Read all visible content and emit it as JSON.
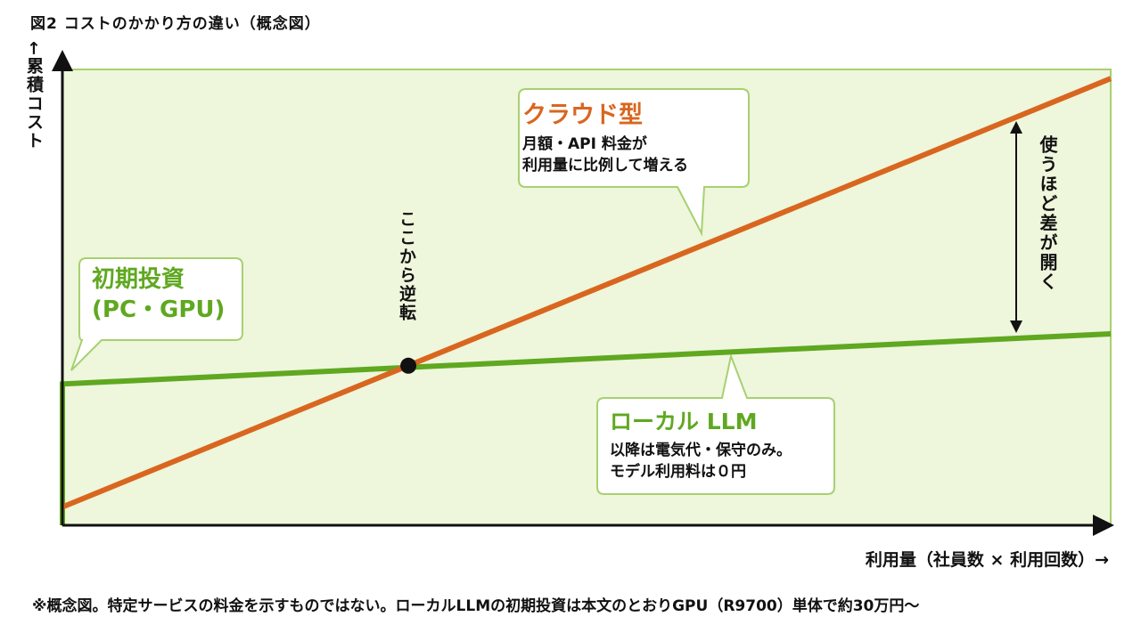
{
  "figure_title": "図2 コストのかかり方の違い（概念図）",
  "y_axis_label": "←累積コスト",
  "x_axis_label": "利用量（社員数 × 利用回数）→",
  "footnote": "※概念図。特定サービスの料金を示すものではない。ローカルLLMの初期投資は本文のとおりGPU（R9700）単体で約30万円〜",
  "annotations": {
    "cloud_title": "クラウド型",
    "cloud_line1": "月額・API 料金が",
    "cloud_line2": "利用量に比例して増える",
    "initial_line1": "初期投資",
    "initial_line2": "(PC・GPU)",
    "local_title": "ローカル LLM",
    "local_line1": "以降は電気代・保守のみ。",
    "local_line2": "モデル利用料は０円",
    "crossover": "ここから逆転",
    "gap": "使うほど差が開く"
  },
  "colors": {
    "cloud": "#d9661f",
    "local": "#5fa820",
    "plot_background": "#eef6dc",
    "plot_border": "#a8d070",
    "axis": "#111111",
    "callout_border": "#a8d070"
  },
  "chart_data": {
    "type": "line",
    "xlabel": "利用量（社員数 × 利用回数）→",
    "ylabel": "←累積コスト",
    "xlim": [
      0,
      100
    ],
    "ylim": [
      0,
      100
    ],
    "grid": false,
    "series": [
      {
        "name": "クラウド型",
        "x": [
          0,
          100
        ],
        "y": [
          4,
          98
        ]
      },
      {
        "name": "ローカル LLM",
        "x": [
          0,
          0,
          100
        ],
        "y": [
          0,
          31,
          42
        ]
      }
    ],
    "crossover": {
      "x": 33,
      "y": 35
    },
    "annotations": [
      "ここから逆転",
      "使うほど差が開く"
    ]
  }
}
